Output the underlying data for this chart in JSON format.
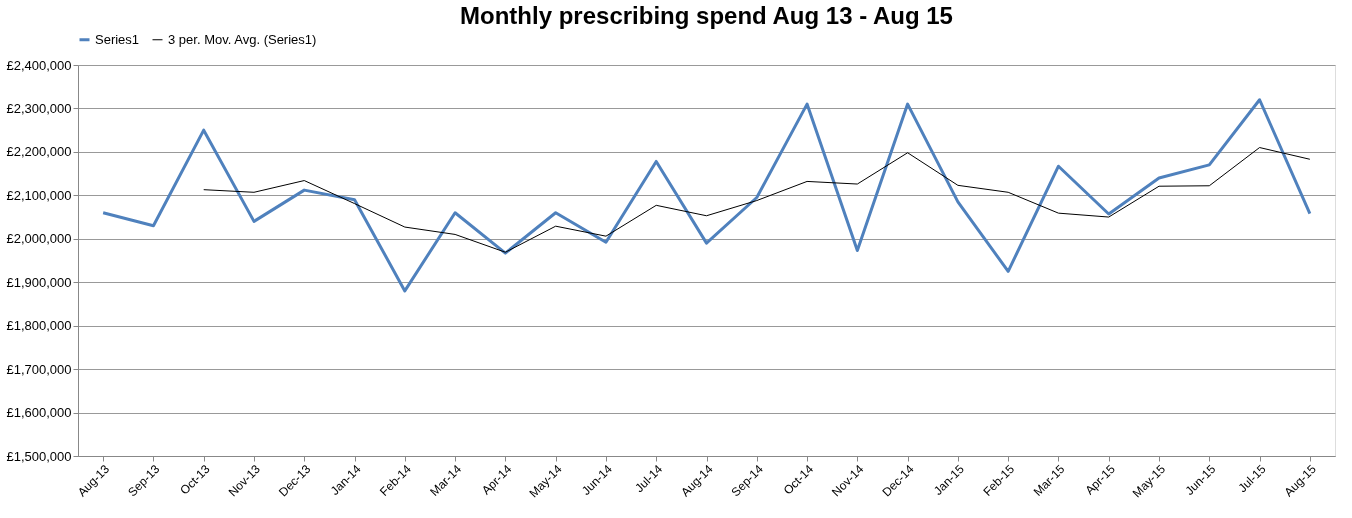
{
  "chart_data": {
    "type": "line",
    "title": "Monthly prescribing spend Aug 13 - Aug 15",
    "categories": [
      "Aug-13",
      "Sep-13",
      "Oct-13",
      "Nov-13",
      "Dec-13",
      "Jan-14",
      "Feb-14",
      "Mar-14",
      "Apr-14",
      "May-14",
      "Jun-14",
      "Jul-14",
      "Aug-14",
      "Sep-14",
      "Oct-14",
      "Nov-14",
      "Dec-14",
      "Jan-15",
      "Feb-15",
      "Mar-15",
      "Apr-15",
      "May-15",
      "Jun-15",
      "Jul-15",
      "Aug-15"
    ],
    "series": [
      {
        "name": "Series1",
        "color": "#4f81bd",
        "values": [
          2060000,
          2030000,
          2250000,
          2040000,
          2112000,
          2090000,
          1880000,
          2060000,
          1967000,
          2060000,
          1992000,
          2178000,
          1990000,
          2095000,
          2310000,
          1973000,
          2310000,
          2085000,
          1925000,
          2167000,
          2057000,
          2140000,
          2170000,
          2320000,
          2058000
        ]
      },
      {
        "name": "3 per. Mov. Avg. (Series1)",
        "color": "#000000",
        "values": [
          null,
          null,
          2113000,
          2107000,
          2134000,
          2081000,
          2027000,
          2010000,
          1969000,
          2029000,
          2006000,
          2077000,
          2053000,
          2088000,
          2132000,
          2126000,
          2198000,
          2123000,
          2107000,
          2059000,
          2050000,
          2121000,
          2122000,
          2210000,
          2183000
        ]
      }
    ],
    "ylim": [
      1500000,
      2400000
    ],
    "yticks": [
      {
        "value": 1500000,
        "label": "£1,500,000"
      },
      {
        "value": 1600000,
        "label": "£1,600,000"
      },
      {
        "value": 1700000,
        "label": "£1,700,000"
      },
      {
        "value": 1800000,
        "label": "£1,800,000"
      },
      {
        "value": 1900000,
        "label": "£1,900,000"
      },
      {
        "value": 2000000,
        "label": "£2,000,000"
      },
      {
        "value": 2100000,
        "label": "£2,100,000"
      },
      {
        "value": 2200000,
        "label": "£2,200,000"
      },
      {
        "value": 2300000,
        "label": "£2,300,000"
      },
      {
        "value": 2400000,
        "label": "£2,400,000"
      }
    ],
    "grid": "y",
    "legend": "top",
    "marker": "none",
    "line_style": "solid"
  }
}
